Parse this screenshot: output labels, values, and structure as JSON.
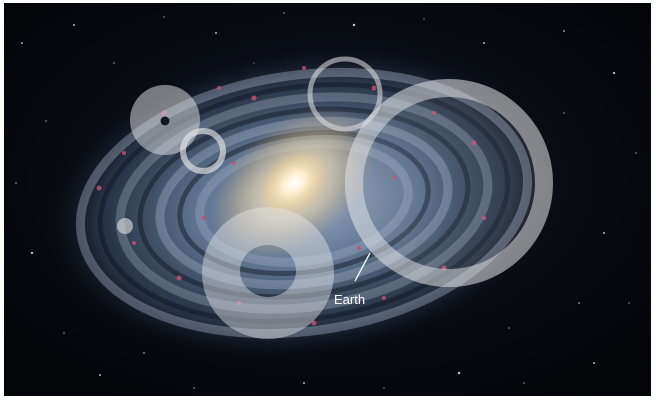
{
  "image": {
    "subject": "milky-way-galaxy-illustration",
    "label_earth": "Earth",
    "colors": {
      "space": "#05060a",
      "arm_blue": "#7f97b8",
      "core_glow": "#fff4d6",
      "overlay_circle": "#e6e6e6",
      "nebula_pink": "#c0506e"
    }
  }
}
